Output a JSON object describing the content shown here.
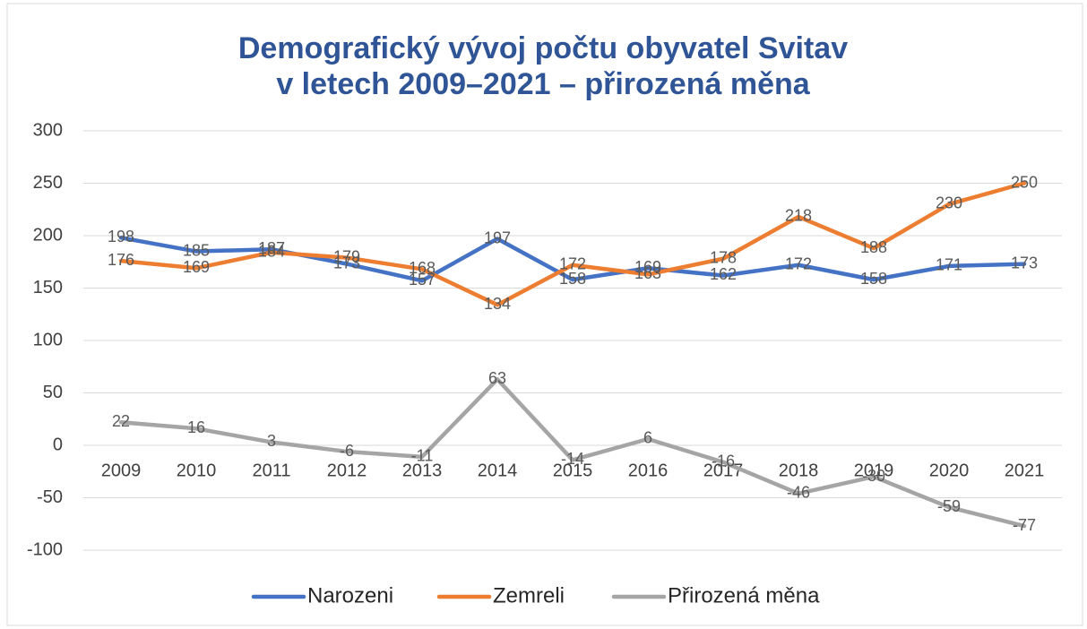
{
  "chart_data": {
    "type": "line",
    "title": [
      "Demografický vývoj počtu obyvatel Svitav",
      "v letech 2009–2021 – přirozená měna"
    ],
    "categories": [
      "2009",
      "2010",
      "2011",
      "2012",
      "2013",
      "2014",
      "2015",
      "2016",
      "2017",
      "2018",
      "2019",
      "2020",
      "2021"
    ],
    "series": [
      {
        "name": "Narozeni",
        "color": "#4472c4",
        "values": [
          198,
          185,
          187,
          173,
          157,
          197,
          158,
          169,
          162,
          172,
          158,
          171,
          173
        ]
      },
      {
        "name": "Zemreli",
        "color": "#ed7d31",
        "values": [
          176,
          169,
          184,
          179,
          168,
          134,
          172,
          163,
          178,
          218,
          188,
          230,
          250
        ]
      },
      {
        "name": "Přirozená měna",
        "color": "#a5a5a5",
        "values": [
          22,
          16,
          3,
          -6,
          -11,
          63,
          -14,
          6,
          -16,
          -46,
          -30,
          -59,
          -77
        ]
      }
    ],
    "ylim": [
      -100,
      300
    ],
    "yticks": [
      -100,
      -50,
      0,
      50,
      100,
      150,
      200,
      250,
      300
    ],
    "grid": true,
    "legend": "bottom",
    "data_labels": true
  }
}
